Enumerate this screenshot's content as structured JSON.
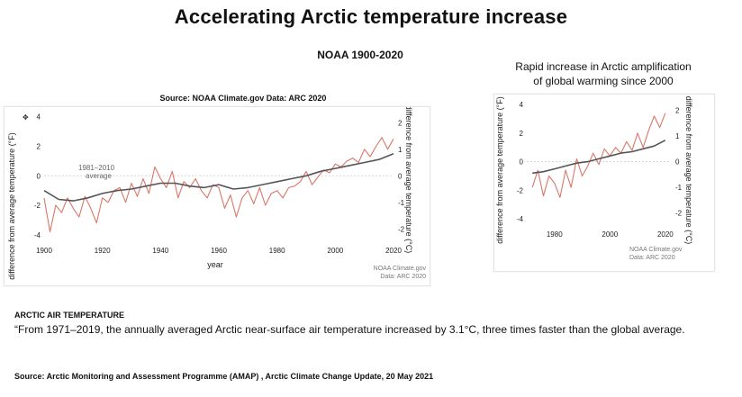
{
  "header": {
    "title": "Accelerating Arctic temperature increase",
    "subtitle": "NOAA 1900-2020",
    "source_left": "Source: NOAA Climate.gov Data: ARC 2020",
    "right_caption_line1": "Rapid increase in Arctic amplification",
    "right_caption_line2": "of global warming since 2000"
  },
  "colors": {
    "arctic": "#d9776a",
    "global": "#555555"
  },
  "chart_data": [
    {
      "type": "line",
      "title": "",
      "xlabel": "year",
      "ylabel_left": "difference from average temperature (°F)",
      "ylabel_right": "difference from average temperature (°C)",
      "xlim": [
        1900,
        2020
      ],
      "ylim_f": [
        -4.5,
        3.8
      ],
      "x_ticks": [
        "1900",
        "1920",
        "1940",
        "1960",
        "1980",
        "2000",
        "2020"
      ],
      "y_ticks_f": [
        "-4",
        "-2",
        "0",
        "2",
        "4"
      ],
      "y_ticks_c": [
        "-2",
        "-1",
        "0",
        "1",
        "2"
      ],
      "annotation_line1": "1981–2010",
      "annotation_line2": "average",
      "credit_line1": "NOAA Climate.gov",
      "credit_line2": "Data: ARC 2020",
      "series": [
        {
          "role": "arctic",
          "x": [
            1900,
            1902,
            1904,
            1906,
            1908,
            1910,
            1912,
            1914,
            1916,
            1918,
            1920,
            1922,
            1924,
            1926,
            1928,
            1930,
            1932,
            1934,
            1936,
            1938,
            1940,
            1942,
            1944,
            1946,
            1948,
            1950,
            1952,
            1954,
            1956,
            1958,
            1960,
            1962,
            1964,
            1966,
            1968,
            1970,
            1972,
            1974,
            1976,
            1978,
            1980,
            1982,
            1984,
            1986,
            1988,
            1990,
            1992,
            1994,
            1996,
            1998,
            2000,
            2002,
            2004,
            2006,
            2008,
            2010,
            2012,
            2014,
            2016,
            2018,
            2020
          ],
          "values": [
            -1.5,
            -3.8,
            -2.0,
            -2.5,
            -1.5,
            -2.2,
            -2.8,
            -1.4,
            -2.2,
            -3.2,
            -1.5,
            -1.8,
            -1.0,
            -0.8,
            -1.8,
            -0.5,
            -1.4,
            -0.2,
            -1.2,
            0.6,
            -0.2,
            -0.8,
            0.3,
            -1.5,
            -0.4,
            -0.8,
            -0.2,
            -1.0,
            -1.5,
            -0.6,
            -0.8,
            -2.2,
            -1.3,
            -2.8,
            -1.5,
            -1.0,
            -1.9,
            -0.8,
            -2.0,
            -1.2,
            -1.0,
            -1.5,
            -0.8,
            -0.7,
            -0.4,
            0.3,
            -0.6,
            -0.1,
            0.4,
            0.2,
            0.8,
            0.6,
            1.0,
            1.2,
            0.9,
            1.8,
            1.3,
            2.0,
            2.6,
            1.8,
            2.5
          ]
        },
        {
          "role": "global",
          "x": [
            1900,
            1905,
            1910,
            1915,
            1920,
            1925,
            1930,
            1935,
            1940,
            1945,
            1950,
            1955,
            1960,
            1965,
            1970,
            1975,
            1980,
            1985,
            1990,
            1995,
            2000,
            2005,
            2010,
            2015,
            2020
          ],
          "values": [
            -1.0,
            -1.6,
            -1.7,
            -1.5,
            -1.2,
            -1.0,
            -0.9,
            -0.7,
            -0.5,
            -0.5,
            -0.7,
            -0.8,
            -0.6,
            -0.9,
            -0.8,
            -0.6,
            -0.4,
            -0.2,
            0.0,
            0.3,
            0.5,
            0.7,
            0.9,
            1.1,
            1.5
          ]
        }
      ]
    },
    {
      "type": "line",
      "title": "",
      "ylabel_left": "difference from average temperature (°F)",
      "ylabel_right": "difference from average temperature (°C)",
      "xlim": [
        1970,
        2022
      ],
      "ylim_f": [
        -4.5,
        4.2
      ],
      "x_ticks": [
        "1980",
        "2000",
        "2020"
      ],
      "y_ticks_f": [
        "-4",
        "-2",
        "0",
        "2",
        "4"
      ],
      "y_ticks_c": [
        "-2",
        "-1",
        "0",
        "1",
        "2"
      ],
      "credit_line1": "NOAA Climate.gov",
      "credit_line2": "Data: ARC 2020",
      "series": [
        {
          "role": "arctic",
          "x": [
            1972,
            1974,
            1976,
            1978,
            1980,
            1982,
            1984,
            1986,
            1988,
            1990,
            1992,
            1994,
            1996,
            1998,
            2000,
            2002,
            2004,
            2006,
            2008,
            2010,
            2012,
            2014,
            2016,
            2018,
            2020
          ],
          "values": [
            -1.8,
            -0.6,
            -2.4,
            -1.0,
            -1.5,
            -2.5,
            -0.6,
            -1.8,
            0.2,
            -1.0,
            -0.3,
            0.6,
            -0.2,
            0.9,
            0.4,
            1.0,
            0.6,
            1.4,
            0.8,
            2.0,
            1.0,
            2.2,
            3.2,
            2.4,
            3.4
          ]
        },
        {
          "role": "global",
          "x": [
            1972,
            1976,
            1980,
            1984,
            1988,
            1992,
            1996,
            2000,
            2004,
            2008,
            2012,
            2016,
            2020
          ],
          "values": [
            -0.8,
            -0.7,
            -0.5,
            -0.3,
            -0.1,
            0.0,
            0.2,
            0.4,
            0.6,
            0.7,
            0.9,
            1.1,
            1.5
          ]
        }
      ]
    }
  ],
  "body": {
    "air_heading": "ARCTIC AIR TEMPERATURE",
    "quote": "“From 1971–2019, the annually averaged Arctic near-surface air temperature increased by 3.1°C, three times faster than the global average.",
    "source": "Source: Arctic Monitoring and Assessment Programme (AMAP) , Arctic Climate Change Update, 20 May 2021"
  }
}
